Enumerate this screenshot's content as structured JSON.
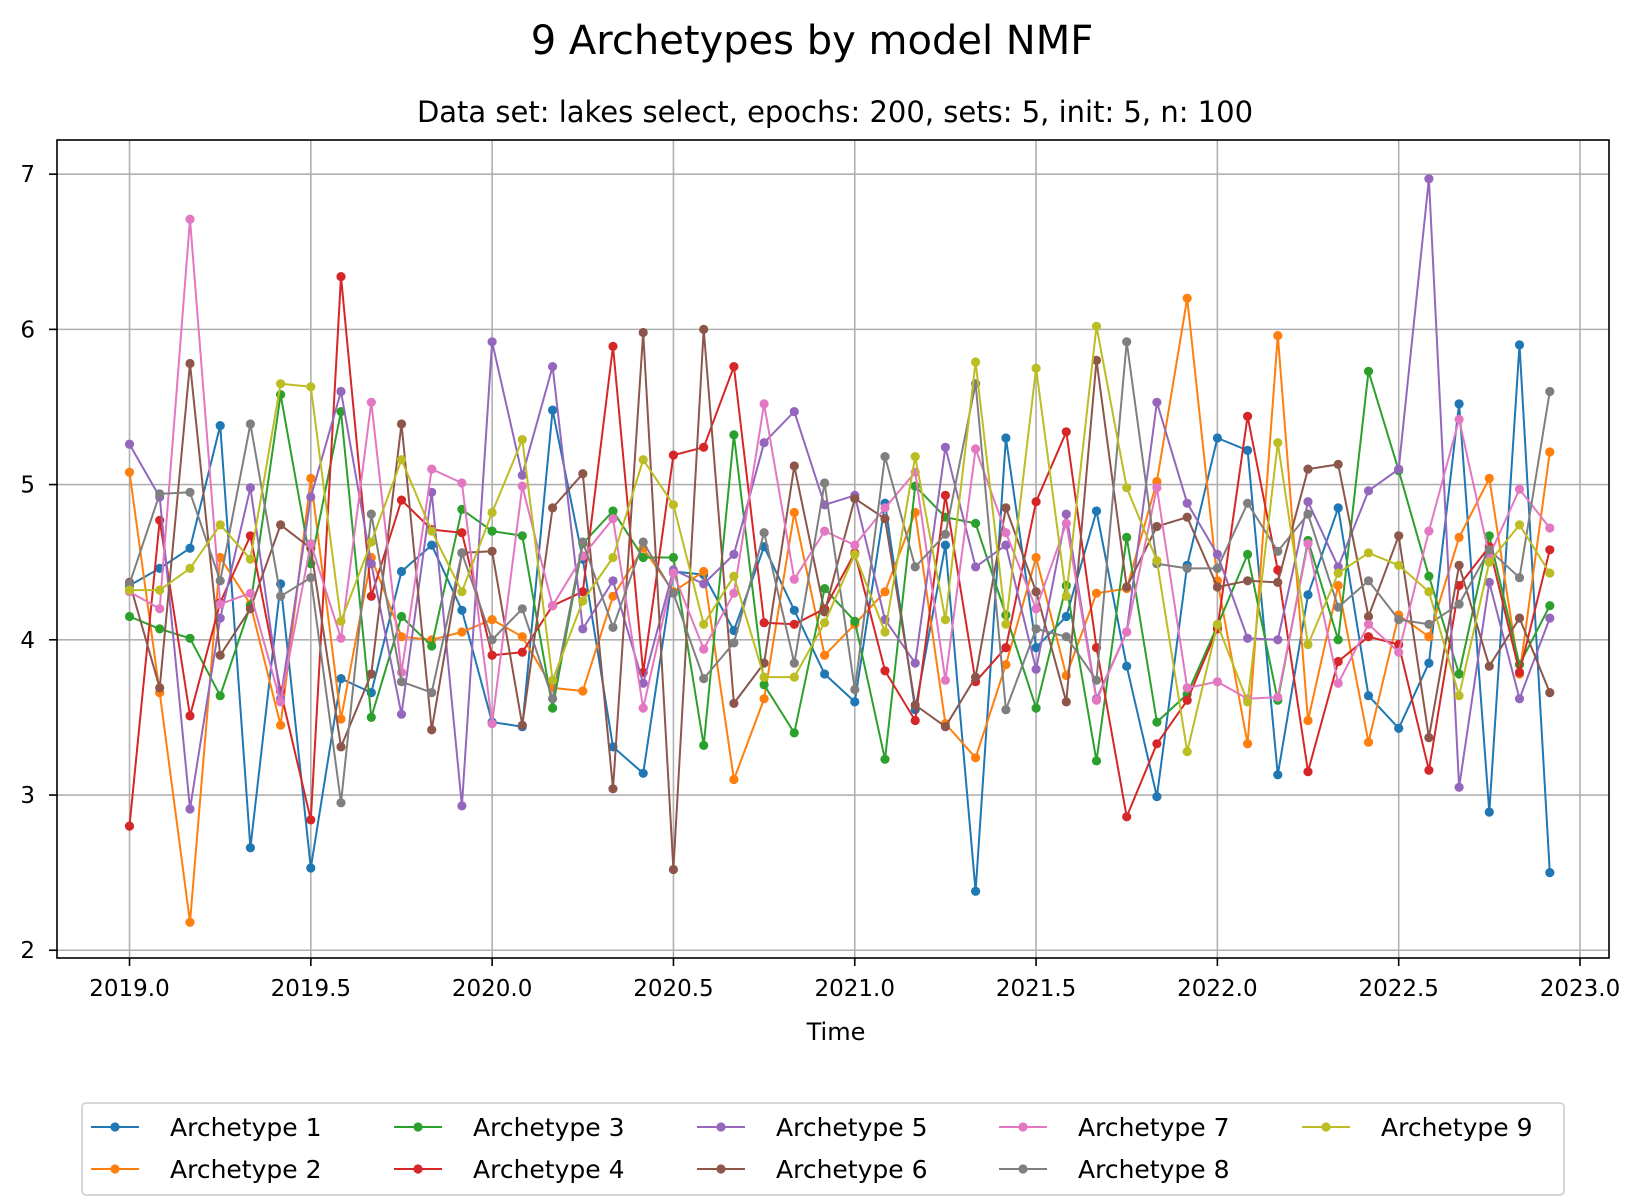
{
  "chart_data": {
    "type": "line",
    "title": "9 Archetypes by model NMF",
    "subtitle": "Data set: lakes select, epochs: 200, sets: 5, init: 5, n: 100",
    "xlabel": "Time",
    "ylabel": "",
    "xlim": [
      2018.8,
      2023.08
    ],
    "ylim": [
      1.95,
      7.22
    ],
    "xticks": [
      2019.0,
      2019.5,
      2020.0,
      2020.5,
      2021.0,
      2021.5,
      2022.0,
      2022.5,
      2023.0
    ],
    "xtick_labels": [
      "2019.0",
      "2019.5",
      "2020.0",
      "2020.5",
      "2021.0",
      "2021.5",
      "2022.0",
      "2022.5",
      "2023.0"
    ],
    "yticks": [
      2,
      3,
      4,
      5,
      6,
      7
    ],
    "ytick_labels": [
      "2",
      "3",
      "4",
      "5",
      "6",
      "7"
    ],
    "grid": true,
    "legend": "bottom-center, 5 columns",
    "x": [
      2019.0,
      2019.0833,
      2019.1667,
      2019.25,
      2019.3333,
      2019.4167,
      2019.5,
      2019.5833,
      2019.6667,
      2019.75,
      2019.8333,
      2019.9167,
      2020.0,
      2020.0833,
      2020.1667,
      2020.25,
      2020.3333,
      2020.4167,
      2020.5,
      2020.5833,
      2020.6667,
      2020.75,
      2020.8333,
      2020.9167,
      2021.0,
      2021.0833,
      2021.1667,
      2021.25,
      2021.3333,
      2021.4167,
      2021.5,
      2021.5833,
      2021.6667,
      2021.75,
      2021.8333,
      2021.9167,
      2022.0,
      2022.0833,
      2022.1667,
      2022.25,
      2022.3333,
      2022.4167,
      2022.5,
      2022.5833,
      2022.6667,
      2022.75,
      2022.8333,
      2022.9167
    ],
    "series": [
      {
        "name": "Archetype 1",
        "color": "#1f77b4",
        "values": [
          4.35,
          4.46,
          4.59,
          5.38,
          2.66,
          4.36,
          2.53,
          3.75,
          3.66,
          4.44,
          4.61,
          4.19,
          3.47,
          3.44,
          5.48,
          4.52,
          3.31,
          3.14,
          4.44,
          4.42,
          4.06,
          4.6,
          4.19,
          3.78,
          3.6,
          4.88,
          3.55,
          4.61,
          2.38,
          5.3,
          3.95,
          4.15,
          4.83,
          3.83,
          2.99,
          4.48,
          5.3,
          5.22,
          3.13,
          4.29,
          4.85,
          3.64,
          3.43,
          3.85,
          5.52,
          2.89,
          5.9,
          2.5
        ]
      },
      {
        "name": "Archetype 2",
        "color": "#ff7f0e",
        "values": [
          5.08,
          3.66,
          2.18,
          4.53,
          4.23,
          3.45,
          5.04,
          3.49,
          4.53,
          4.02,
          4.0,
          4.05,
          4.13,
          4.02,
          3.69,
          3.67,
          4.28,
          4.59,
          4.31,
          4.44,
          3.1,
          3.62,
          4.82,
          3.9,
          4.1,
          4.31,
          4.82,
          3.46,
          3.24,
          3.84,
          4.53,
          3.77,
          4.3,
          4.33,
          5.02,
          6.2,
          4.38,
          3.33,
          5.96,
          3.48,
          4.35,
          3.34,
          4.16,
          4.02,
          4.66,
          5.04,
          3.78,
          5.21
        ]
      },
      {
        "name": "Archetype 3",
        "color": "#2ca02c",
        "values": [
          4.15,
          4.07,
          4.01,
          3.64,
          4.22,
          5.58,
          4.49,
          5.47,
          3.5,
          4.15,
          3.96,
          4.84,
          4.7,
          4.67,
          3.56,
          4.62,
          4.83,
          4.53,
          4.53,
          3.32,
          5.32,
          3.71,
          3.4,
          4.33,
          4.12,
          3.23,
          4.99,
          4.79,
          4.75,
          4.16,
          3.56,
          4.35,
          3.22,
          4.66,
          3.47,
          3.65,
          4.09,
          4.55,
          3.61,
          4.64,
          4.0,
          5.73,
          5.09,
          4.41,
          3.78,
          4.67,
          3.84,
          4.22
        ]
      },
      {
        "name": "Archetype 4",
        "color": "#d62728",
        "values": [
          2.8,
          4.77,
          3.51,
          4.24,
          4.67,
          3.67,
          2.84,
          6.34,
          4.28,
          4.9,
          4.71,
          4.69,
          3.9,
          3.92,
          4.22,
          4.31,
          5.89,
          3.79,
          5.19,
          5.24,
          5.76,
          4.11,
          4.1,
          4.2,
          4.56,
          3.8,
          3.48,
          4.93,
          3.73,
          3.95,
          4.89,
          5.34,
          3.95,
          2.86,
          3.33,
          3.61,
          4.07,
          5.44,
          4.45,
          3.15,
          3.86,
          4.02,
          3.97,
          3.16,
          4.35,
          4.6,
          3.79,
          4.58
        ]
      },
      {
        "name": "Archetype 5",
        "color": "#9467bd",
        "values": [
          5.26,
          4.92,
          2.91,
          4.14,
          4.98,
          3.62,
          4.92,
          5.6,
          4.49,
          3.52,
          4.95,
          2.93,
          5.92,
          5.06,
          5.76,
          4.07,
          4.38,
          3.72,
          4.45,
          4.36,
          4.55,
          5.27,
          5.47,
          4.87,
          4.93,
          4.13,
          3.85,
          5.24,
          4.47,
          4.61,
          3.81,
          4.81,
          3.62,
          4.05,
          5.53,
          4.88,
          4.55,
          4.01,
          4.0,
          4.89,
          4.47,
          4.96,
          5.1,
          6.97,
          3.05,
          4.37,
          3.62,
          4.14
        ]
      },
      {
        "name": "Archetype 6",
        "color": "#8c564b",
        "values": [
          4.37,
          3.69,
          5.78,
          3.9,
          4.2,
          4.74,
          4.59,
          3.31,
          3.78,
          5.39,
          3.42,
          4.56,
          4.57,
          3.45,
          4.85,
          5.07,
          3.04,
          5.98,
          2.52,
          6.0,
          3.59,
          3.85,
          5.12,
          4.18,
          4.91,
          4.78,
          3.58,
          3.44,
          3.76,
          4.85,
          4.31,
          3.6,
          5.8,
          4.34,
          4.73,
          4.79,
          4.34,
          4.38,
          4.37,
          5.1,
          5.13,
          4.15,
          4.67,
          3.37,
          4.48,
          3.83,
          4.14,
          3.66
        ]
      },
      {
        "name": "Archetype 7",
        "color": "#e377c2",
        "values": [
          4.31,
          4.2,
          6.71,
          4.23,
          4.3,
          3.6,
          4.62,
          4.01,
          5.53,
          3.79,
          5.1,
          5.01,
          3.46,
          4.99,
          4.22,
          4.54,
          4.78,
          3.56,
          4.43,
          3.94,
          4.3,
          5.52,
          4.39,
          4.7,
          4.61,
          4.85,
          5.08,
          3.74,
          5.23,
          4.69,
          4.2,
          4.75,
          3.61,
          4.05,
          4.98,
          3.69,
          3.73,
          3.62,
          3.63,
          4.62,
          3.72,
          4.1,
          3.92,
          4.7,
          5.42,
          4.54,
          4.97,
          4.72
        ]
      },
      {
        "name": "Archetype 8",
        "color": "#7f7f7f",
        "values": [
          4.36,
          4.94,
          4.95,
          4.38,
          5.39,
          4.28,
          4.4,
          2.95,
          4.81,
          3.73,
          3.66,
          4.56,
          4.0,
          4.2,
          3.62,
          4.63,
          4.08,
          4.63,
          4.3,
          3.75,
          3.98,
          4.69,
          3.85,
          5.01,
          3.68,
          5.18,
          4.47,
          4.68,
          5.65,
          3.55,
          4.07,
          4.02,
          3.74,
          5.92,
          4.49,
          4.46,
          4.46,
          4.88,
          4.57,
          4.81,
          4.21,
          4.38,
          4.13,
          4.1,
          4.23,
          4.58,
          4.4,
          5.6
        ]
      },
      {
        "name": "Archetype 9",
        "color": "#bcbd22",
        "values": [
          4.32,
          4.32,
          4.46,
          4.74,
          4.52,
          5.65,
          5.63,
          4.12,
          4.63,
          5.16,
          4.7,
          4.31,
          4.82,
          5.29,
          3.74,
          4.25,
          4.53,
          5.16,
          4.87,
          4.1,
          4.41,
          3.76,
          3.76,
          4.11,
          4.55,
          4.05,
          5.18,
          4.13,
          5.79,
          4.1,
          5.75,
          4.28,
          6.02,
          4.98,
          4.51,
          3.28,
          4.1,
          3.6,
          5.27,
          3.97,
          4.43,
          4.56,
          4.48,
          4.31,
          3.64,
          4.5,
          4.74,
          4.43
        ]
      }
    ]
  }
}
